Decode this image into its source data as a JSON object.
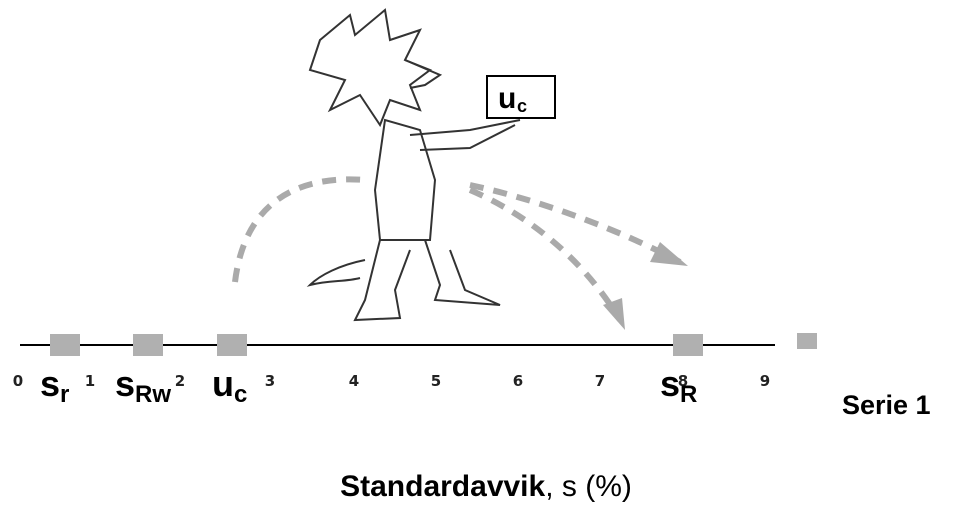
{
  "card": {
    "symbol": "u",
    "subscript": "c"
  },
  "axis": {
    "ticks": [
      "0",
      "1",
      "2",
      "3",
      "4",
      "5",
      "6",
      "7",
      "8",
      "9"
    ],
    "title_bold": "Standardavvik",
    "title_rest": ", s (%)"
  },
  "markers": [
    {
      "symbol": "s",
      "subscript": "r"
    },
    {
      "symbol": "s",
      "subscript": "Rw"
    },
    {
      "symbol": "u",
      "subscript": "c"
    },
    {
      "symbol": "s",
      "subscript": "R"
    }
  ],
  "legend": "Serie 1"
}
